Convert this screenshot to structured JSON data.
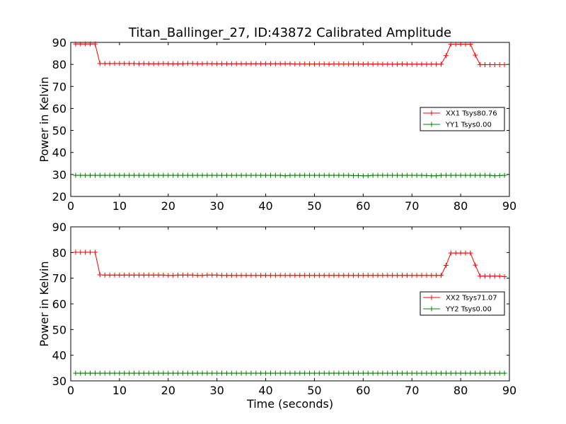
{
  "chart_data": {
    "type": "line",
    "title": "Titan_Ballinger_27, ID:43872 Calibrated Amplitude",
    "xlabel": "Time (seconds)",
    "panels": [
      {
        "ylabel": "Power in Kelvin",
        "xlim": [
          0,
          90
        ],
        "ylim": [
          20,
          90
        ],
        "xticks": [
          "0",
          "10",
          "20",
          "30",
          "40",
          "50",
          "60",
          "70",
          "80",
          "90"
        ],
        "yticks": [
          "20",
          "30",
          "40",
          "50",
          "60",
          "70",
          "80",
          "90"
        ],
        "legend": "center-right",
        "series": [
          {
            "name": "XX1 Tsys80.76",
            "color": "#ff0000",
            "x": [
              1,
              2,
              3,
              4,
              5,
              6,
              7,
              8,
              9,
              10,
              11,
              12,
              13,
              14,
              15,
              16,
              17,
              18,
              19,
              20,
              21,
              22,
              23,
              24,
              25,
              26,
              27,
              28,
              29,
              30,
              31,
              32,
              33,
              34,
              35,
              36,
              37,
              38,
              39,
              40,
              41,
              42,
              43,
              44,
              45,
              46,
              47,
              48,
              49,
              50,
              51,
              52,
              53,
              54,
              55,
              56,
              57,
              58,
              59,
              60,
              61,
              62,
              63,
              64,
              65,
              66,
              67,
              68,
              69,
              70,
              71,
              72,
              73,
              74,
              75,
              76,
              77,
              78,
              79,
              80,
              81,
              82,
              83,
              84,
              85,
              86,
              87,
              88,
              89
            ],
            "y": [
              89.3,
              89.3,
              89.3,
              89.3,
              89.3,
              80.4,
              80.4,
              80.4,
              80.4,
              80.4,
              80.4,
              80.4,
              80.4,
              80.3,
              80.4,
              80.3,
              80.3,
              80.3,
              80.4,
              80.3,
              80.3,
              80.3,
              80.3,
              80.4,
              80.4,
              80.3,
              80.3,
              80.4,
              80.3,
              80.3,
              80.3,
              80.3,
              80.3,
              80.3,
              80.3,
              80.3,
              80.3,
              80.3,
              80.3,
              80.3,
              80.3,
              80.3,
              80.3,
              80.3,
              80.3,
              80.2,
              80.2,
              80.2,
              80.2,
              80.2,
              80.2,
              80.2,
              80.1,
              80.2,
              80.2,
              80.2,
              80.2,
              80.2,
              80.2,
              80.1,
              80.2,
              80.1,
              80.2,
              80.1,
              80.1,
              80.1,
              80.1,
              80.2,
              80.1,
              80.1,
              80.1,
              80.1,
              80.1,
              80.1,
              80.1,
              80.1,
              84.0,
              89.2,
              89.2,
              89.2,
              89.2,
              89.2,
              84.2,
              79.9,
              79.9,
              79.9,
              79.9,
              79.9,
              79.9
            ]
          },
          {
            "name": "YY1 Tsys0.00",
            "color": "#008000",
            "x": [
              1,
              2,
              3,
              4,
              5,
              6,
              7,
              8,
              9,
              10,
              11,
              12,
              13,
              14,
              15,
              16,
              17,
              18,
              19,
              20,
              21,
              22,
              23,
              24,
              25,
              26,
              27,
              28,
              29,
              30,
              31,
              32,
              33,
              34,
              35,
              36,
              37,
              38,
              39,
              40,
              41,
              42,
              43,
              44,
              45,
              46,
              47,
              48,
              49,
              50,
              51,
              52,
              53,
              54,
              55,
              56,
              57,
              58,
              59,
              60,
              61,
              62,
              63,
              64,
              65,
              66,
              67,
              68,
              69,
              70,
              71,
              72,
              73,
              74,
              75,
              76,
              77,
              78,
              79,
              80,
              81,
              82,
              83,
              84,
              85,
              86,
              87,
              88,
              89
            ],
            "y": [
              29.6,
              29.6,
              29.6,
              29.6,
              29.6,
              29.6,
              29.6,
              29.6,
              29.6,
              29.6,
              29.6,
              29.6,
              29.6,
              29.6,
              29.6,
              29.6,
              29.6,
              29.6,
              29.6,
              29.6,
              29.6,
              29.6,
              29.6,
              29.6,
              29.6,
              29.6,
              29.6,
              29.6,
              29.6,
              29.6,
              29.6,
              29.6,
              29.6,
              29.6,
              29.6,
              29.6,
              29.6,
              29.6,
              29.6,
              29.6,
              29.6,
              29.6,
              29.6,
              29.4,
              29.6,
              29.6,
              29.6,
              29.6,
              29.6,
              29.6,
              29.6,
              29.6,
              29.6,
              29.6,
              29.6,
              29.6,
              29.6,
              29.5,
              29.5,
              29.4,
              29.4,
              29.6,
              29.6,
              29.6,
              29.6,
              29.6,
              29.6,
              29.6,
              29.6,
              29.6,
              29.6,
              29.6,
              29.5,
              29.4,
              29.4,
              29.6,
              29.6,
              29.6,
              29.6,
              29.6,
              29.6,
              29.6,
              29.6,
              29.6,
              29.6,
              29.6,
              29.4,
              29.5,
              29.6
            ]
          }
        ]
      },
      {
        "ylabel": "Power in Kelvin",
        "xlim": [
          0,
          90
        ],
        "ylim": [
          30,
          90
        ],
        "xticks": [
          "0",
          "10",
          "20",
          "30",
          "40",
          "50",
          "60",
          "70",
          "80",
          "90"
        ],
        "yticks": [
          "30",
          "40",
          "50",
          "60",
          "70",
          "80",
          "90"
        ],
        "legend": "center-right",
        "series": [
          {
            "name": "XX2 Tsys71.07",
            "color": "#ff0000",
            "x": [
              1,
              2,
              3,
              4,
              5,
              6,
              7,
              8,
              9,
              10,
              11,
              12,
              13,
              14,
              15,
              16,
              17,
              18,
              19,
              20,
              21,
              22,
              23,
              24,
              25,
              26,
              27,
              28,
              29,
              30,
              31,
              32,
              33,
              34,
              35,
              36,
              37,
              38,
              39,
              40,
              41,
              42,
              43,
              44,
              45,
              46,
              47,
              48,
              49,
              50,
              51,
              52,
              53,
              54,
              55,
              56,
              57,
              58,
              59,
              60,
              61,
              62,
              63,
              64,
              65,
              66,
              67,
              68,
              69,
              70,
              71,
              72,
              73,
              74,
              75,
              76,
              77,
              78,
              79,
              80,
              81,
              82,
              83,
              84,
              85,
              86,
              87,
              88,
              89
            ],
            "y": [
              80.1,
              80.1,
              80.1,
              80.1,
              80.1,
              71.3,
              71.2,
              71.2,
              71.2,
              71.2,
              71.2,
              71.2,
              71.2,
              71.2,
              71.2,
              71.2,
              71.2,
              71.2,
              71.2,
              71.1,
              71.1,
              71.2,
              71.2,
              71.2,
              71.2,
              71.1,
              71.1,
              71.2,
              71.2,
              71.2,
              71.1,
              71.1,
              71.1,
              71.1,
              71.1,
              71.1,
              71.1,
              71.1,
              71.1,
              71.1,
              71.1,
              71.1,
              71.1,
              71.1,
              71.1,
              71.1,
              71.1,
              71.1,
              71.1,
              71.1,
              71.1,
              71.1,
              71.1,
              71.1,
              71.1,
              71.1,
              71.1,
              71.1,
              71.1,
              71.1,
              71.1,
              71.1,
              71.1,
              71.1,
              71.1,
              71.1,
              71.1,
              71.1,
              71.1,
              71.1,
              71.1,
              71.1,
              71.1,
              71.1,
              71.1,
              71.1,
              75.0,
              79.8,
              79.8,
              79.8,
              79.8,
              79.8,
              75.1,
              70.8,
              70.8,
              70.8,
              70.8,
              70.8,
              70.6
            ]
          },
          {
            "name": "YY2 Tsys0.00",
            "color": "#008000",
            "x": [
              1,
              2,
              3,
              4,
              5,
              6,
              7,
              8,
              9,
              10,
              11,
              12,
              13,
              14,
              15,
              16,
              17,
              18,
              19,
              20,
              21,
              22,
              23,
              24,
              25,
              26,
              27,
              28,
              29,
              30,
              31,
              32,
              33,
              34,
              35,
              36,
              37,
              38,
              39,
              40,
              41,
              42,
              43,
              44,
              45,
              46,
              47,
              48,
              49,
              50,
              51,
              52,
              53,
              54,
              55,
              56,
              57,
              58,
              59,
              60,
              61,
              62,
              63,
              64,
              65,
              66,
              67,
              68,
              69,
              70,
              71,
              72,
              73,
              74,
              75,
              76,
              77,
              78,
              79,
              80,
              81,
              82,
              83,
              84,
              85,
              86,
              87,
              88,
              89
            ],
            "y": [
              33.0,
              33.0,
              33.0,
              33.0,
              33.0,
              33.0,
              33.0,
              33.0,
              33.0,
              33.0,
              33.0,
              33.0,
              33.0,
              33.0,
              33.0,
              33.0,
              33.0,
              33.0,
              33.0,
              33.0,
              33.0,
              33.0,
              33.0,
              33.0,
              33.0,
              33.0,
              33.0,
              33.0,
              33.0,
              33.0,
              33.0,
              33.0,
              33.0,
              33.0,
              33.0,
              33.0,
              33.0,
              33.0,
              33.0,
              33.0,
              33.0,
              33.0,
              33.0,
              33.0,
              33.0,
              33.0,
              33.0,
              33.0,
              33.0,
              33.0,
              33.0,
              33.0,
              33.0,
              33.0,
              33.0,
              33.0,
              33.0,
              33.0,
              33.0,
              33.0,
              33.0,
              33.0,
              33.0,
              33.0,
              33.0,
              33.0,
              33.0,
              33.0,
              33.0,
              33.0,
              33.0,
              33.0,
              33.0,
              33.0,
              33.0,
              33.0,
              33.0,
              33.0,
              33.0,
              33.0,
              33.0,
              33.0,
              33.0,
              33.0,
              33.0,
              33.0,
              33.0,
              33.0,
              33.0
            ]
          }
        ]
      }
    ]
  }
}
